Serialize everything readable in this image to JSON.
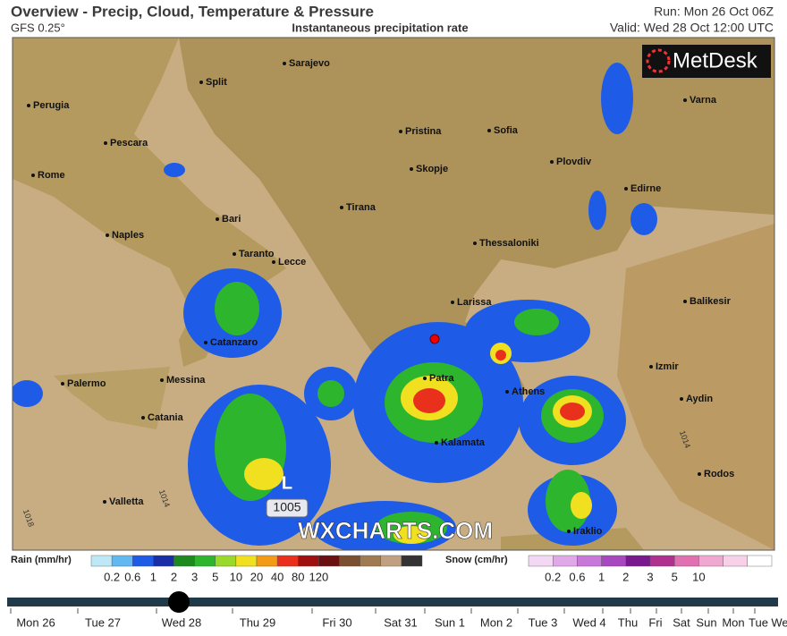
{
  "header": {
    "title": "Overview - Precip, Cloud, Temperature & Pressure",
    "model": "GFS 0.25°",
    "subtitle": "Instantaneous precipitation rate",
    "run": "Run: Mon 26 Oct 06Z",
    "valid": "Valid: Wed 28 Oct 12:00 UTC"
  },
  "logo": "MetDesk",
  "watermark": "WXCHARTS.COM",
  "pressure": {
    "low": "L",
    "low_value": "1005",
    "isobars": [
      "1014",
      "1018",
      "1014"
    ]
  },
  "cities": [
    "Sarajevo",
    "Split",
    "Perugia",
    "Pristina",
    "Sofia",
    "Varna",
    "Pescara",
    "Plovdiv",
    "Rome",
    "Skopje",
    "Edirne",
    "Bari",
    "Tirana",
    "Naples",
    "Taranto",
    "Lecce",
    "Thessaloniki",
    "Balikesir",
    "Larissa",
    "Catanzaro",
    "Izmir",
    "Palermo",
    "Messina",
    "Patra",
    "Athens",
    "Aydin",
    "Catania",
    "Kalamata",
    "Valletta",
    "Rodos",
    "Iraklio"
  ],
  "rain_legend": {
    "label": "Rain (mm/hr)",
    "ticks": [
      "0.2",
      "0.6",
      "1",
      "2",
      "3",
      "5",
      "10",
      "20",
      "40",
      "80",
      "120"
    ]
  },
  "snow_legend": {
    "label": "Snow (cm/hr)",
    "ticks": [
      "0.2",
      "0.6",
      "1",
      "2",
      "3",
      "5",
      "10"
    ]
  },
  "timeline": {
    "days": [
      "Mon 26",
      "Tue 27",
      "Wed 28",
      "Thu 29",
      "Fri 30",
      "Sat 31",
      "Sun 1",
      "Mon 2",
      "Tue 3",
      "Wed 4",
      "Thu",
      "Fri",
      "Sat",
      "Sun",
      "Mon",
      "Tue",
      "We"
    ]
  }
}
